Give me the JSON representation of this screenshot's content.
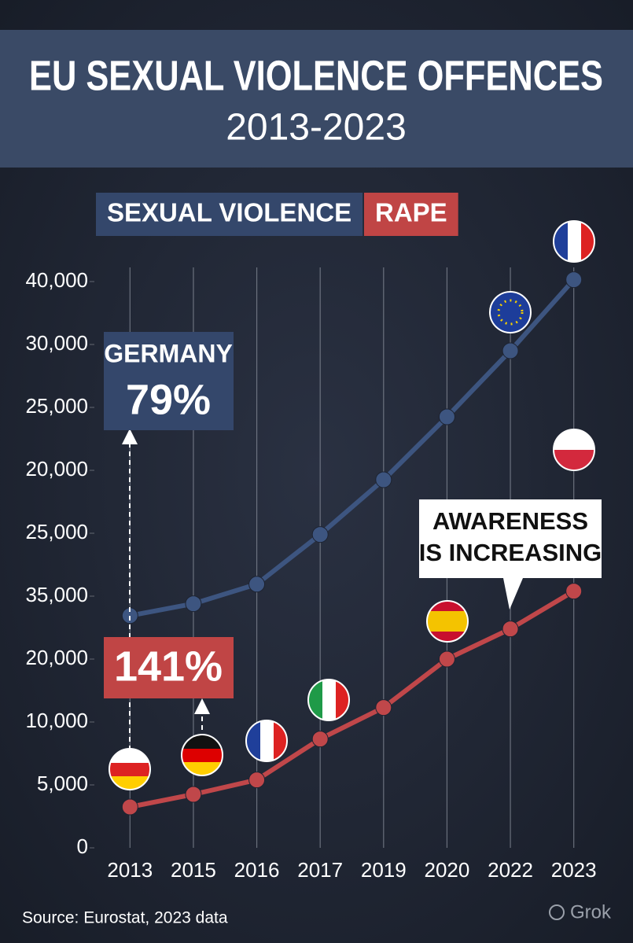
{
  "chart_data": {
    "type": "line",
    "title": "EU SEXUAL VIOLENCE OFFENCES",
    "subtitle": "2013-2023",
    "categories": [
      "2013",
      "2015",
      "2016",
      "2017",
      "2019",
      "2020",
      "2022",
      "2023"
    ],
    "series": [
      {
        "name": "SEXUAL VIOLENCE",
        "color": "#3d5580",
        "values": [
          3.69,
          3.88,
          4.19,
          4.98,
          5.85,
          6.85,
          7.9,
          9.03
        ]
      },
      {
        "name": "RAPE",
        "color": "#c0474a",
        "values": [
          0.65,
          0.85,
          1.08,
          1.73,
          2.23,
          3.0,
          3.48,
          4.08
        ]
      }
    ],
    "ylim": [
      0,
      9.2
    ],
    "yticks": [
      0,
      {
        "value": 1,
        "label": "5,000"
      },
      {
        "value": 2,
        "label": "10,000"
      },
      {
        "value": 3,
        "label": "20,000"
      },
      {
        "value": 4,
        "label": "35,000"
      },
      {
        "value": 5,
        "label": "25,000"
      },
      {
        "value": 6,
        "label": "20,000"
      },
      {
        "value": 7,
        "label": "25,000"
      },
      {
        "value": 8,
        "label": "30,000"
      },
      {
        "value": 9,
        "label": "40,000"
      }
    ],
    "grid": true,
    "annotations": {
      "germany": "GERMANY",
      "germany_pct": "79%",
      "rape_pct": "141%",
      "awareness_1": "AWARENESS",
      "awareness_2": "IS INCREASING"
    },
    "source": "Source: Eurostat, 2023 data",
    "watermark": "Grok"
  }
}
